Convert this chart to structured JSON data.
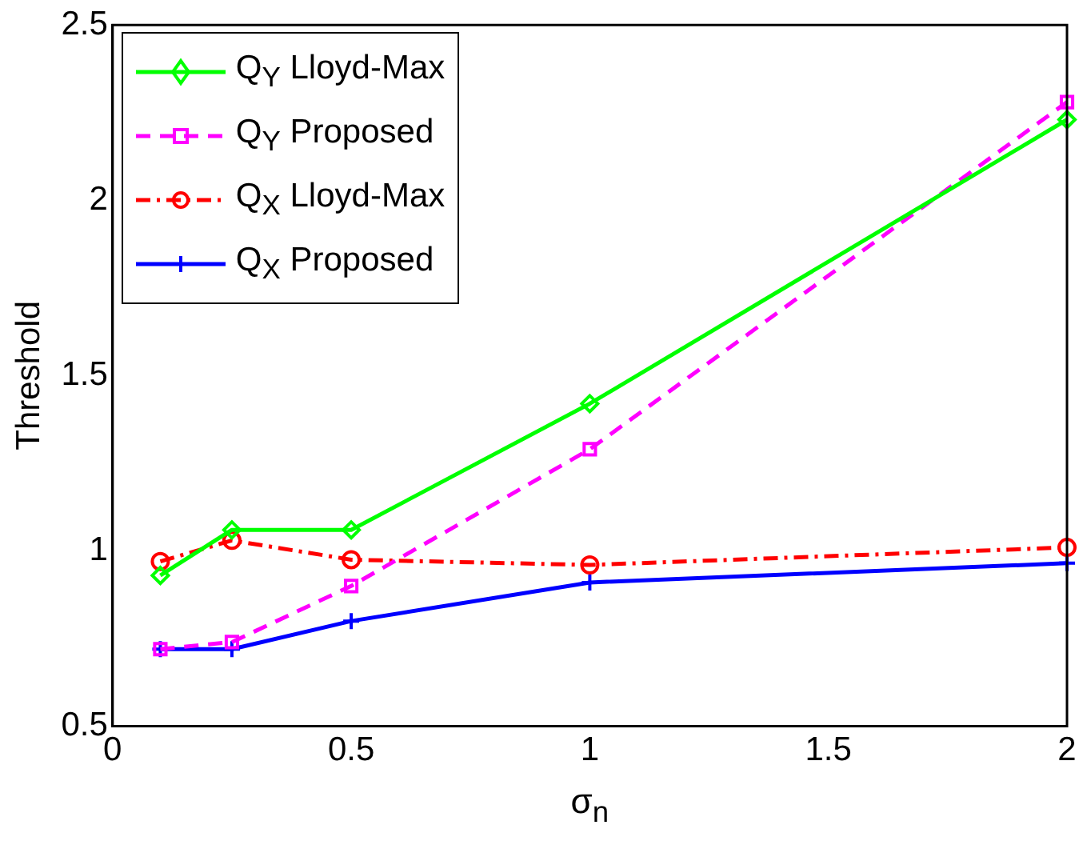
{
  "chart_data": {
    "type": "line",
    "xlabel": "σ$_{n}$",
    "ylabel": "Threshold",
    "x": [
      0.1,
      0.25,
      0.5,
      1,
      2
    ],
    "series": [
      {
        "name": "Q$_{Y}$ Lloyd-Max",
        "color": "#00ff00",
        "marker": "diamond",
        "line_style": "solid",
        "values": [
          0.93,
          1.06,
          1.06,
          1.42,
          2.23
        ]
      },
      {
        "name": "Q$_{Y}$ Proposed",
        "color": "#ff00ff",
        "marker": "square",
        "line_style": "dashed",
        "values": [
          0.72,
          0.74,
          0.9,
          1.29,
          2.28
        ]
      },
      {
        "name": "Q$_{X}$ Lloyd-Max",
        "color": "#ff0000",
        "marker": "circle",
        "line_style": "dashdot",
        "values": [
          0.97,
          1.03,
          0.975,
          0.96,
          1.01
        ]
      },
      {
        "name": "Q$_{X}$ Proposed",
        "color": "#0000ff",
        "marker": "cross",
        "line_style": "solid",
        "values": [
          0.72,
          0.72,
          0.8,
          0.91,
          0.965
        ]
      }
    ],
    "xlim": [
      0,
      2
    ],
    "xticks": [
      0,
      0.5,
      1,
      1.5,
      2
    ],
    "ylim": [
      0.5,
      2.5
    ],
    "yticks": [
      0.5,
      1,
      1.5,
      2,
      2.5
    ],
    "grid": false,
    "legend": "top left"
  }
}
